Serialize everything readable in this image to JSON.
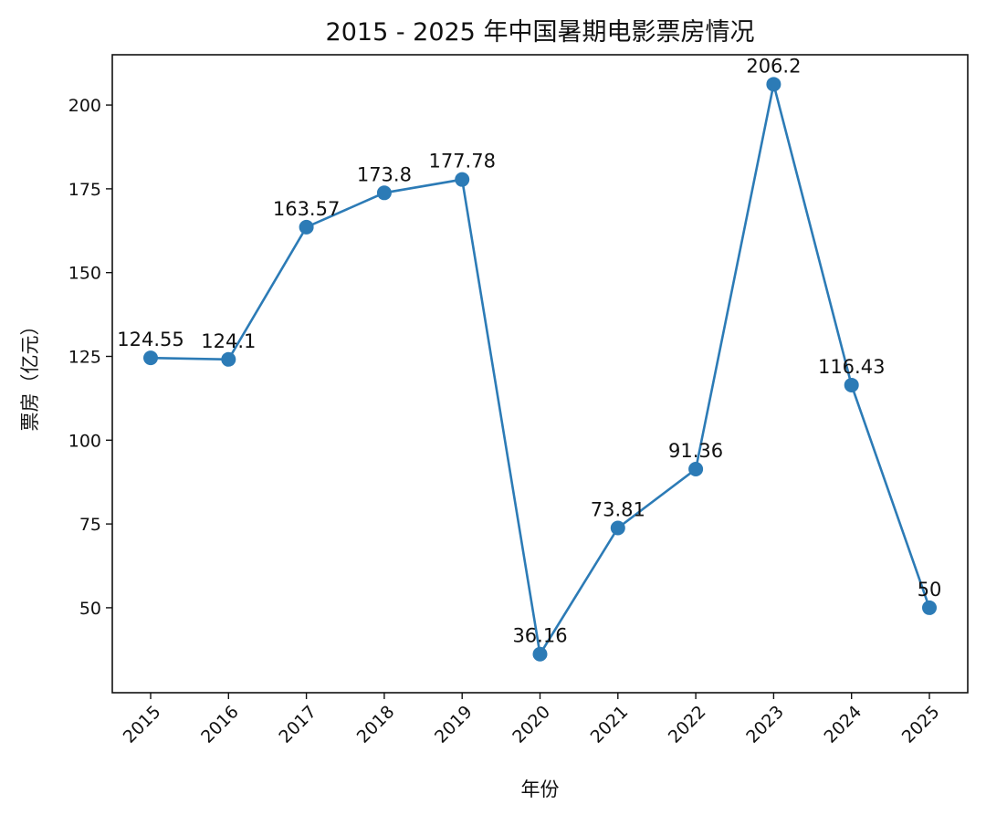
{
  "chart_data": {
    "type": "line",
    "title": "2015 - 2025 年中国暑期电影票房情况",
    "xlabel": "年份",
    "ylabel": "票房（亿元）",
    "categories": [
      "2015",
      "2016",
      "2017",
      "2018",
      "2019",
      "2020",
      "2021",
      "2022",
      "2023",
      "2024",
      "2025"
    ],
    "series": [
      {
        "name": "票房",
        "values": [
          124.55,
          124.1,
          163.57,
          173.8,
          177.78,
          36.16,
          73.81,
          91.36,
          206.2,
          116.43,
          50
        ]
      }
    ],
    "data_labels": [
      "124.55",
      "124.1",
      "163.57",
      "173.8",
      "177.78",
      "36.16",
      "73.81",
      "91.36",
      "206.2",
      "116.43",
      "50"
    ],
    "yticks": [
      50,
      75,
      100,
      125,
      150,
      175,
      200
    ],
    "ylim": [
      24.65,
      215.0
    ],
    "grid": false,
    "color": "#2c7bb6"
  }
}
